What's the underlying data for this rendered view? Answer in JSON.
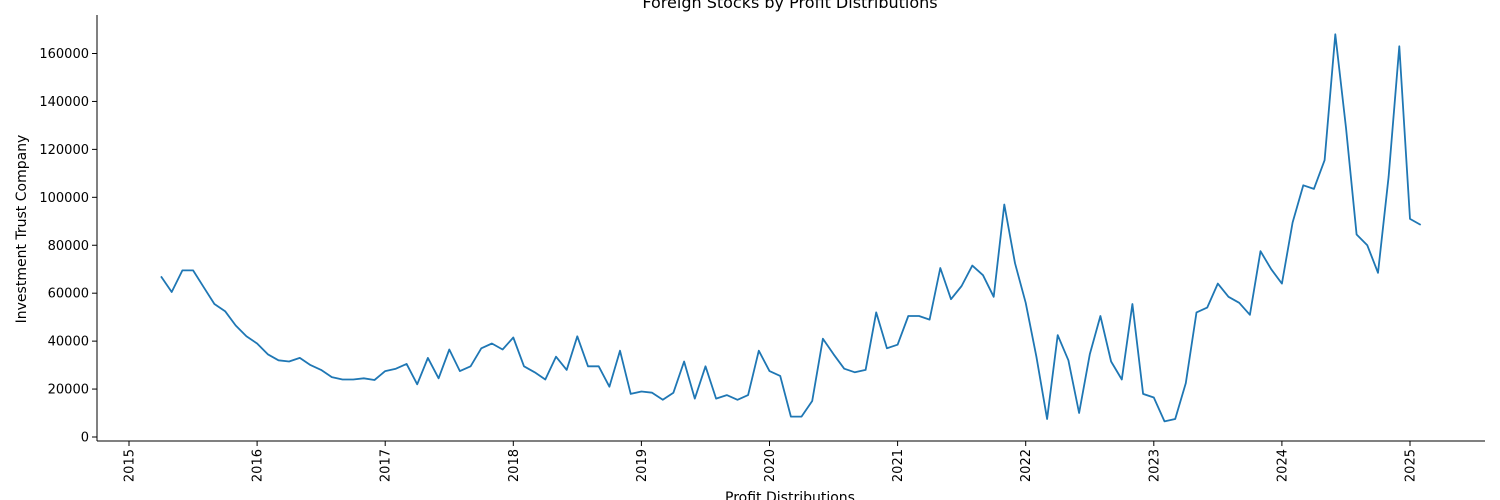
{
  "chart_data": {
    "type": "line",
    "title": "Foreign Stocks by Profit Distributions",
    "xlabel": "Profit Distributions",
    "ylabel": "Investment Trust Company",
    "xlim": [
      "2015-01-01",
      "2025-06-01"
    ],
    "ylim": [
      0,
      175000
    ],
    "x_ticks": [
      "2015",
      "2016",
      "2017",
      "2018",
      "2019",
      "2020",
      "2021",
      "2022",
      "2023",
      "2024",
      "2025"
    ],
    "y_ticks": [
      0,
      20000,
      40000,
      60000,
      80000,
      100000,
      120000,
      140000,
      160000
    ],
    "grid": false,
    "legend": "none",
    "line_color": "#1f77b4",
    "series": [
      {
        "x": [
          "2015-04",
          "2015-05",
          "2015-06",
          "2015-07",
          "2015-08",
          "2015-09",
          "2015-10",
          "2015-11",
          "2015-12",
          "2016-01",
          "2016-02",
          "2016-03",
          "2016-04",
          "2016-05",
          "2016-06",
          "2016-07",
          "2016-08",
          "2016-09",
          "2016-10",
          "2016-11",
          "2016-12",
          "2017-01",
          "2017-02",
          "2017-03",
          "2017-04",
          "2017-05",
          "2017-06",
          "2017-07",
          "2017-08",
          "2017-09",
          "2017-10",
          "2017-11",
          "2017-12",
          "2018-01",
          "2018-02",
          "2018-03",
          "2018-04",
          "2018-05",
          "2018-06",
          "2018-07",
          "2018-08",
          "2018-09",
          "2018-10",
          "2018-11",
          "2018-12",
          "2019-01",
          "2019-02",
          "2019-03",
          "2019-04",
          "2019-05",
          "2019-06",
          "2019-07",
          "2019-08",
          "2019-09",
          "2019-10",
          "2019-11",
          "2019-12",
          "2020-01",
          "2020-02",
          "2020-03",
          "2020-04",
          "2020-05",
          "2020-06",
          "2020-07",
          "2020-08",
          "2020-09",
          "2020-10",
          "2020-11",
          "2020-12",
          "2021-01",
          "2021-02",
          "2021-03",
          "2021-04",
          "2021-05",
          "2021-06",
          "2021-07",
          "2021-08",
          "2021-09",
          "2021-10",
          "2021-11",
          "2021-12",
          "2022-01",
          "2022-02",
          "2022-03",
          "2022-04",
          "2022-05",
          "2022-06",
          "2022-07",
          "2022-08",
          "2022-09",
          "2022-10",
          "2022-11",
          "2022-12",
          "2023-01",
          "2023-02",
          "2023-03",
          "2023-04",
          "2023-05",
          "2023-06",
          "2023-07",
          "2023-08",
          "2023-09",
          "2023-10",
          "2023-11",
          "2023-12",
          "2024-01",
          "2024-02",
          "2024-03",
          "2024-04",
          "2024-05",
          "2024-06",
          "2024-07",
          "2024-08",
          "2024-09",
          "2024-10",
          "2024-11",
          "2024-12",
          "2025-01",
          "2025-02"
        ],
        "values": [
          67000,
          60500,
          69500,
          69500,
          62500,
          55500,
          52500,
          46500,
          42000,
          39000,
          34500,
          32000,
          31500,
          33000,
          30000,
          28000,
          25000,
          24000,
          24000,
          24500,
          23800,
          27500,
          28500,
          30500,
          22000,
          33000,
          24500,
          36500,
          27500,
          29500,
          37000,
          39000,
          36500,
          41500,
          29500,
          27000,
          24000,
          33500,
          28000,
          42000,
          29500,
          29500,
          21000,
          36000,
          18000,
          19000,
          18500,
          15500,
          18500,
          31500,
          16000,
          29500,
          16000,
          17500,
          15500,
          17500,
          36000,
          27500,
          25500,
          8500,
          8500,
          15000,
          41000,
          34500,
          28500,
          27000,
          28000,
          52000,
          37000,
          38500,
          50500,
          50500,
          49000,
          70500,
          57500,
          63000,
          71500,
          67500,
          58500,
          97000,
          72500,
          56000,
          33500,
          7500,
          42500,
          32000,
          10000,
          34500,
          50500,
          31500,
          24000,
          55500,
          18000,
          16500,
          6500,
          7500,
          22500,
          52000,
          54000,
          64000,
          58500,
          56000,
          51000,
          77500,
          70000,
          64000,
          89500,
          105000,
          103500,
          115500,
          168000,
          129000,
          84500,
          80000,
          68500,
          108500,
          163000,
          91000,
          88500
        ]
      }
    ]
  }
}
